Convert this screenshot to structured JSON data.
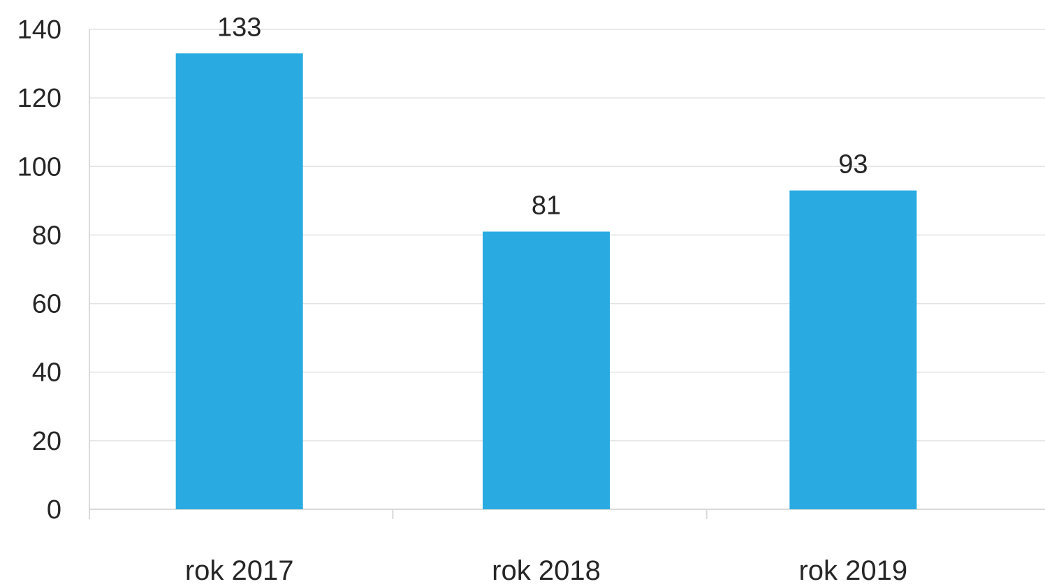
{
  "chart_data": {
    "type": "bar",
    "categories": [
      "rok 2017",
      "rok 2018",
      "rok 2019"
    ],
    "series": [
      {
        "values": [
          133,
          81,
          93
        ]
      }
    ],
    "ylim": [
      0,
      140
    ],
    "yticks": [
      0,
      20,
      40,
      60,
      80,
      100,
      120,
      140
    ],
    "grid": true,
    "legend": "none",
    "data_labels": true,
    "colors": {
      "bar": "#29ABE2",
      "grid": "#e3e3e3",
      "axis": "#d9d9d9",
      "text": "#262626"
    }
  }
}
